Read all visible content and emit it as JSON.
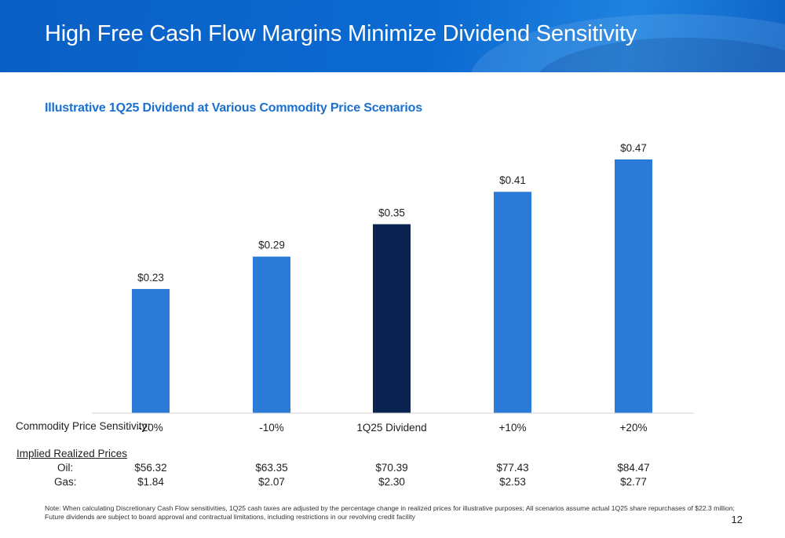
{
  "header": {
    "title": "High Free Cash Flow Margins Minimize Dividend Sensitivity"
  },
  "colors": {
    "header_blue": "#0b66cc",
    "bar_blue": "#2b7bd8",
    "bar_highlight": "#0b2350",
    "subtitle_blue": "#1a6fd1"
  },
  "chart_data": {
    "type": "bar",
    "title": "Illustrative 1Q25 Dividend at Various Commodity Price Scenarios",
    "x_row_label": "Commodity Price Sensitivity:",
    "categories": [
      "-20%",
      "-10%",
      "1Q25 Dividend",
      "+10%",
      "+20%"
    ],
    "values": [
      0.23,
      0.29,
      0.35,
      0.41,
      0.47
    ],
    "data_labels": [
      "$0.23",
      "$0.29",
      "$0.35",
      "$0.41",
      "$0.47"
    ],
    "highlight_category": "1Q25 Dividend",
    "ylim": [
      0,
      0.5
    ],
    "grid": false,
    "legend": "none"
  },
  "implied_prices": {
    "heading": "Implied Realized Prices",
    "oil_label": "Oil:",
    "gas_label": "Gas:",
    "oil": [
      "$56.32",
      "$63.35",
      "$70.39",
      "$77.43",
      "$84.47"
    ],
    "gas": [
      "$1.84",
      "$2.07",
      "$2.30",
      "$2.53",
      "$2.77"
    ]
  },
  "footer": {
    "note": "Note: When calculating Discretionary Cash Flow sensitivities, 1Q25 cash taxes are adjusted by the percentage change in realized prices for illustrative purposes; All scenarios assume actual 1Q25 share repurchases of $22.3 million; Future dividends are subject to board approval and contractual limitations, including restrictions in our revolving credit facility",
    "page_number": "12"
  }
}
